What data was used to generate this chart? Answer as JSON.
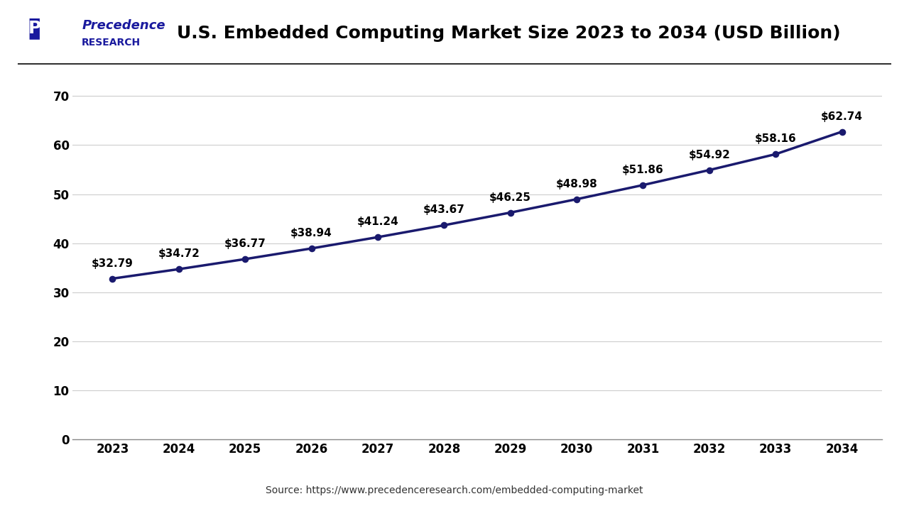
{
  "title": "U.S. Embedded Computing Market Size 2023 to 2034 (USD Billion)",
  "years": [
    2023,
    2024,
    2025,
    2026,
    2027,
    2028,
    2029,
    2030,
    2031,
    2032,
    2033,
    2034
  ],
  "values": [
    32.79,
    34.72,
    36.77,
    38.94,
    41.24,
    43.67,
    46.25,
    48.98,
    51.86,
    54.92,
    58.16,
    62.74
  ],
  "labels": [
    "$32.79",
    "$34.72",
    "$36.77",
    "$38.94",
    "$41.24",
    "$43.67",
    "$46.25",
    "$48.98",
    "$51.86",
    "$54.92",
    "$58.16",
    "$62.74"
  ],
  "line_color": "#1a1a6e",
  "marker_color": "#1a1a6e",
  "background_color": "#ffffff",
  "plot_background": "#ffffff",
  "grid_color": "#cccccc",
  "title_color": "#000000",
  "tick_color": "#000000",
  "yticks": [
    0,
    10,
    20,
    30,
    40,
    50,
    60,
    70
  ],
  "ylim": [
    0,
    75
  ],
  "source_text": "Source: https://www.precedenceresearch.com/embedded-computing-market",
  "logo_text_line1": "Precedence",
  "logo_text_line2": "RESEARCH",
  "logo_color": "#1a1a9e",
  "separator_color": "#333333"
}
